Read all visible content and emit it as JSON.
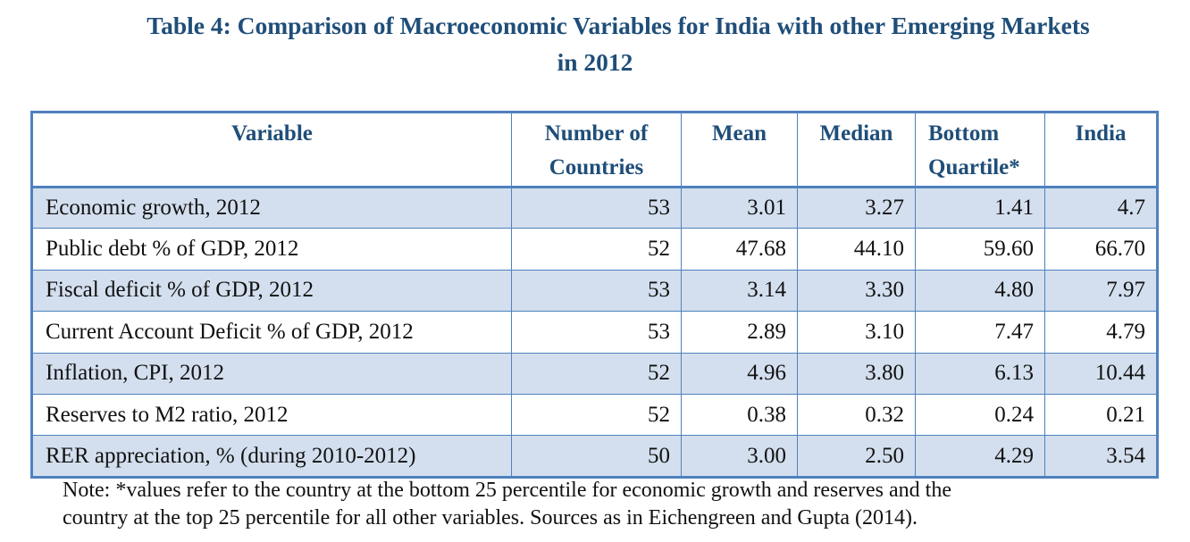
{
  "title": {
    "line1": "Table 4: Comparison of Macroeconomic Variables for India with other Emerging Markets",
    "line2": "in 2012"
  },
  "table": {
    "headers": {
      "variable": "Variable",
      "countries_line1": "Number of",
      "countries_line2": "Countries",
      "mean": "Mean",
      "median": "Median",
      "bottom_line1": "Bottom",
      "bottom_line2": "Quartile*",
      "india": "India"
    },
    "rows": [
      {
        "variable": "Economic growth, 2012",
        "countries": "53",
        "mean": "3.01",
        "median": "3.27",
        "bottom_quartile": "1.41",
        "india": "4.7"
      },
      {
        "variable": "Public debt % of GDP, 2012",
        "countries": "52",
        "mean": "47.68",
        "median": "44.10",
        "bottom_quartile": "59.60",
        "india": "66.70"
      },
      {
        "variable": "Fiscal deficit % of GDP, 2012",
        "countries": "53",
        "mean": "3.14",
        "median": "3.30",
        "bottom_quartile": "4.80",
        "india": "7.97"
      },
      {
        "variable": "Current Account Deficit % of GDP, 2012",
        "countries": "53",
        "mean": "2.89",
        "median": "3.10",
        "bottom_quartile": "7.47",
        "india": "4.79"
      },
      {
        "variable": "Inflation, CPI, 2012",
        "countries": "52",
        "mean": "4.96",
        "median": "3.80",
        "bottom_quartile": "6.13",
        "india": "10.44"
      },
      {
        "variable": "Reserves to M2 ratio, 2012",
        "countries": "52",
        "mean": "0.38",
        "median": "0.32",
        "bottom_quartile": "0.24",
        "india": "0.21"
      },
      {
        "variable": "RER appreciation, % (during 2010-2012)",
        "countries": "50",
        "mean": "3.00",
        "median": "2.50",
        "bottom_quartile": "4.29",
        "india": "3.54"
      }
    ]
  },
  "note": {
    "line1": "Note: *values refer to the country at the bottom 25 percentile for economic growth and reserves and the",
    "line2": "country at the top 25 percentile for all other variables. Sources as in Eichengreen and Gupta (2014)."
  },
  "colors": {
    "title": "#1f4e79",
    "border": "#4f81bd",
    "shade": "#d3dfee"
  }
}
